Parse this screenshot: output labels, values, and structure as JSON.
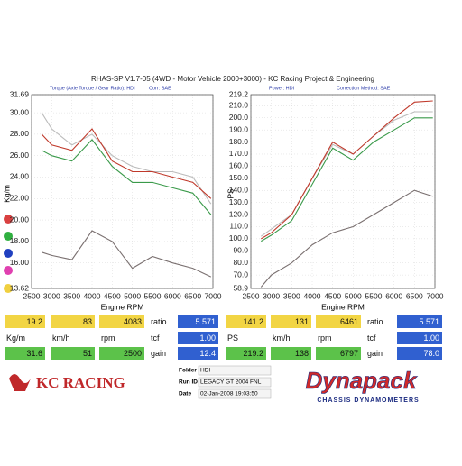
{
  "header": {
    "title": "RHAS-SP V1.7-05    (4WD - Motor Vehicle 2000+3000) - KC Racing Project & Engineering"
  },
  "chart_data": [
    {
      "type": "line",
      "subtitle": "Torque (Axle Torque / Gear Ratio): HDI",
      "correction": "Corr: SAE",
      "y_label": "Kg/m",
      "x_label": "Engine RPM",
      "x": [
        2750,
        3000,
        3500,
        4000,
        4500,
        5000,
        5500,
        6000,
        6500,
        6950
      ],
      "xlim": [
        2500,
        7000
      ],
      "xticks": [
        2500,
        3000,
        3500,
        4000,
        4500,
        5000,
        5500,
        6000,
        6500,
        7000
      ],
      "ylim": [
        13.62,
        31.69
      ],
      "yticks": [
        13.62,
        {
          "value": 16,
          "label": "16.00"
        },
        {
          "value": 18,
          "label": "18.00"
        },
        {
          "value": 20,
          "label": "20.00"
        },
        {
          "value": 22,
          "label": "22.00"
        },
        {
          "value": 24,
          "label": "24.00"
        },
        {
          "value": 26,
          "label": "26.00"
        },
        {
          "value": 28,
          "label": "28.00"
        },
        {
          "value": 30,
          "label": "30.00"
        },
        31.69
      ],
      "grid": true,
      "series": [
        {
          "color": "#bbbbbb",
          "values": [
            30.0,
            28.5,
            27.0,
            28.0,
            26.0,
            25.0,
            24.5,
            24.5,
            24.0,
            21.5
          ]
        },
        {
          "color": "#c0392b",
          "values": [
            28.0,
            27.0,
            26.5,
            28.5,
            25.5,
            24.5,
            24.5,
            24.0,
            23.5,
            22.0
          ]
        },
        {
          "color": "#3a9a4a",
          "values": [
            26.5,
            26.0,
            25.5,
            27.5,
            25.0,
            23.5,
            23.5,
            23.0,
            22.5,
            20.5
          ]
        },
        {
          "color": "#7a7070",
          "values": [
            17.0,
            16.7,
            16.3,
            19.0,
            18.0,
            15.5,
            16.6,
            16.0,
            15.5,
            14.7
          ]
        }
      ]
    },
    {
      "type": "line",
      "subtitle": "Power: HDI",
      "correction": "Correction Method: SAE",
      "y_label": "PS",
      "x_label": "Engine RPM",
      "x": [
        2750,
        3000,
        3500,
        4000,
        4500,
        5000,
        5500,
        6000,
        6500,
        6950
      ],
      "xlim": [
        2500,
        7000
      ],
      "xticks": [
        2500,
        3000,
        3500,
        4000,
        4500,
        5000,
        5500,
        6000,
        6500,
        7000
      ],
      "ylim": [
        58.9,
        219.2
      ],
      "yticks": [
        58.9,
        {
          "value": 70,
          "label": "70.0"
        },
        {
          "value": 80,
          "label": "80.0"
        },
        {
          "value": 90,
          "label": "90.0"
        },
        {
          "value": 100,
          "label": "100.0"
        },
        {
          "value": 110,
          "label": "110.0"
        },
        {
          "value": 120,
          "label": "120.0"
        },
        {
          "value": 130,
          "label": "130.0"
        },
        {
          "value": 140,
          "label": "140.0"
        },
        {
          "value": 150,
          "label": "150.0"
        },
        {
          "value": 160,
          "label": "160.0"
        },
        {
          "value": 170,
          "label": "170.0"
        },
        {
          "value": 180,
          "label": "180.0"
        },
        {
          "value": 190,
          "label": "190.0"
        },
        {
          "value": 200,
          "label": "200.0"
        },
        {
          "value": 210,
          "label": "210.0"
        },
        219.2
      ],
      "grid": true,
      "series": [
        {
          "color": "#bbbbbb",
          "values": [
            102,
            108,
            120,
            150,
            178,
            170,
            185,
            198,
            205,
            205
          ]
        },
        {
          "color": "#c0392b",
          "values": [
            100,
            105,
            120,
            150,
            180,
            170,
            185,
            200,
            213,
            214
          ]
        },
        {
          "color": "#3a9a4a",
          "values": [
            98,
            103,
            115,
            145,
            175,
            165,
            180,
            190,
            200,
            200
          ]
        },
        {
          "color": "#7a7070",
          "values": [
            60,
            70,
            80,
            95,
            105,
            110,
            120,
            130,
            140,
            135
          ]
        }
      ]
    }
  ],
  "readouts": [
    {
      "rows": [
        [
          "19.2",
          "83",
          "4083",
          "ratio",
          "5.571"
        ],
        [
          "Kg/m",
          "km/h",
          "rpm",
          "tcf",
          "1.00"
        ],
        [
          "31.6",
          "51",
          "2500",
          "gain",
          "12.4"
        ]
      ]
    },
    {
      "rows": [
        [
          "141.2",
          "131",
          "6461",
          "ratio",
          "5.571"
        ],
        [
          "PS",
          "km/h",
          "rpm",
          "tcf",
          "1.00"
        ],
        [
          "219.2",
          "138",
          "6797",
          "gain",
          "78.0"
        ]
      ]
    }
  ],
  "footer": {
    "logo": "KC RACING",
    "brand": "Dynapack",
    "tagline": "CHASSIS DYNAMOMETERS",
    "fields": [
      {
        "label": "Folder",
        "value": "HDI"
      },
      {
        "label": "Run ID",
        "value": "LEGACY GT 2004 FNL"
      },
      {
        "label": "Date",
        "value": "02-Jan-2008 19:03:50"
      }
    ]
  }
}
